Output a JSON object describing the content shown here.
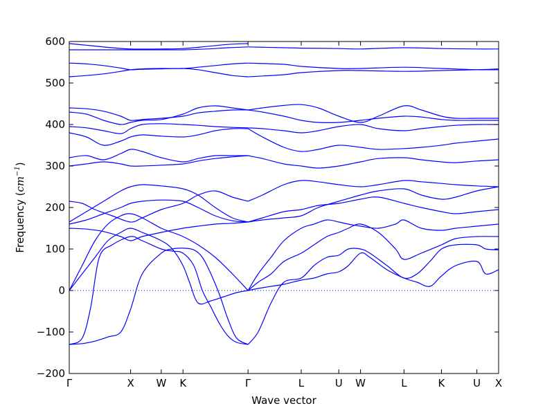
{
  "chart_data": {
    "type": "line",
    "title": "",
    "xlabel": "Wave vector",
    "ylabel": "Frequency (cm⁻¹)",
    "ylabel_parts": {
      "prefix": "Frequency (",
      "unit": "cm",
      "exponent": "−1",
      "suffix": ")"
    },
    "ylim": [
      -200,
      600
    ],
    "yticks": [
      -200,
      -100,
      0,
      100,
      200,
      300,
      400,
      500,
      600
    ],
    "xlim": [
      0,
      1
    ],
    "xticks": [
      {
        "label": "Γ",
        "x": 0.0
      },
      {
        "label": "X",
        "x": 0.1429
      },
      {
        "label": "W",
        "x": 0.2143
      },
      {
        "label": "K",
        "x": 0.2649
      },
      {
        "label": "Γ",
        "x": 0.4164
      },
      {
        "label": "L",
        "x": 0.5403
      },
      {
        "label": "U",
        "x": 0.6278
      },
      {
        "label": "W",
        "x": 0.6784
      },
      {
        "label": "L",
        "x": 0.7797
      },
      {
        "label": "K",
        "x": 0.8669
      },
      {
        "label": "U",
        "x": 0.9494
      },
      {
        "label": "X",
        "x": 1.0
      }
    ],
    "zero_line": true,
    "grid": false,
    "line_color": "#0000ff",
    "series": [
      {
        "x": [
          0,
          0.03,
          0.06,
          0.09,
          0.12,
          0.1429,
          0.17,
          0.2143,
          0.24,
          0.2649,
          0.29,
          0.31,
          0.33,
          0.35,
          0.37,
          0.39,
          0.4164
        ],
        "y": [
          -130,
          -128,
          -122,
          -112,
          -100,
          -45,
          40,
          90,
          100,
          102,
          98,
          80,
          40,
          -10,
          -70,
          -115,
          -130
        ]
      },
      {
        "x": [
          0,
          0.03,
          0.05,
          0.07,
          0.1,
          0.1429,
          0.17,
          0.2143,
          0.24,
          0.2649,
          0.29,
          0.31,
          0.33,
          0.35,
          0.37,
          0.39,
          0.4164
        ],
        "y": [
          -130,
          -115,
          -40,
          80,
          110,
          130,
          120,
          100,
          95,
          90,
          60,
          0,
          -40,
          -80,
          -110,
          -125,
          -130
        ]
      },
      {
        "x": [
          0,
          0.03,
          0.06,
          0.09,
          0.12,
          0.1429,
          0.17,
          0.2143,
          0.24,
          0.2649,
          0.28,
          0.3,
          0.33,
          0.36,
          0.39,
          0.4164
        ],
        "y": [
          0,
          40,
          80,
          120,
          140,
          150,
          140,
          120,
          100,
          60,
          20,
          -30,
          -25,
          -15,
          -5,
          0
        ]
      },
      {
        "x": [
          0,
          0.03,
          0.06,
          0.09,
          0.12,
          0.1429,
          0.17,
          0.2143,
          0.24,
          0.2649,
          0.3,
          0.34,
          0.38,
          0.4164
        ],
        "y": [
          0,
          60,
          120,
          160,
          180,
          185,
          175,
          150,
          140,
          130,
          110,
          80,
          40,
          0
        ]
      },
      {
        "x": [
          0,
          0.04,
          0.08,
          0.12,
          0.1429,
          0.17,
          0.2143,
          0.2649,
          0.3,
          0.34,
          0.38,
          0.4164
        ],
        "y": [
          150,
          148,
          142,
          130,
          120,
          130,
          140,
          150,
          155,
          160,
          162,
          165
        ]
      },
      {
        "x": [
          0,
          0.04,
          0.08,
          0.12,
          0.1429,
          0.17,
          0.2143,
          0.2649,
          0.3,
          0.34,
          0.38,
          0.4164
        ],
        "y": [
          160,
          170,
          185,
          200,
          210,
          215,
          218,
          215,
          200,
          180,
          168,
          165
        ]
      },
      {
        "x": [
          0,
          0.04,
          0.08,
          0.12,
          0.1429,
          0.17,
          0.2143,
          0.2649,
          0.3,
          0.34,
          0.38,
          0.4164
        ],
        "y": [
          165,
          190,
          215,
          240,
          250,
          255,
          252,
          245,
          230,
          200,
          175,
          165
        ]
      },
      {
        "x": [
          0,
          0.03,
          0.06,
          0.1,
          0.1429,
          0.17,
          0.2143,
          0.2649,
          0.3,
          0.34,
          0.38,
          0.4164
        ],
        "y": [
          215,
          210,
          195,
          180,
          165,
          175,
          195,
          210,
          230,
          240,
          225,
          215
        ]
      },
      {
        "x": [
          0,
          0.04,
          0.08,
          0.12,
          0.1429,
          0.17,
          0.2143,
          0.2649,
          0.3,
          0.34,
          0.38,
          0.4164
        ],
        "y": [
          300,
          305,
          310,
          305,
          300,
          300,
          302,
          305,
          312,
          318,
          322,
          325
        ]
      },
      {
        "x": [
          0,
          0.04,
          0.08,
          0.12,
          0.1429,
          0.17,
          0.2143,
          0.2649,
          0.3,
          0.34,
          0.38,
          0.4164
        ],
        "y": [
          320,
          325,
          315,
          330,
          340,
          335,
          320,
          310,
          318,
          325,
          325,
          325
        ]
      },
      {
        "x": [
          0,
          0.04,
          0.08,
          0.12,
          0.1429,
          0.17,
          0.2143,
          0.2649,
          0.3,
          0.34,
          0.38,
          0.4164
        ],
        "y": [
          380,
          370,
          350,
          360,
          370,
          375,
          372,
          370,
          375,
          385,
          390,
          390
        ]
      },
      {
        "x": [
          0,
          0.04,
          0.08,
          0.12,
          0.1429,
          0.17,
          0.2143,
          0.2649,
          0.3,
          0.34,
          0.38,
          0.4164
        ],
        "y": [
          395,
          392,
          385,
          378,
          390,
          400,
          402,
          400,
          398,
          395,
          393,
          392
        ]
      },
      {
        "x": [
          0,
          0.04,
          0.08,
          0.12,
          0.1429,
          0.17,
          0.2143,
          0.2649,
          0.3,
          0.34,
          0.38,
          0.4164
        ],
        "y": [
          430,
          425,
          410,
          400,
          405,
          410,
          412,
          425,
          440,
          445,
          440,
          435
        ]
      },
      {
        "x": [
          0,
          0.04,
          0.08,
          0.12,
          0.1429,
          0.17,
          0.2143,
          0.2649,
          0.3,
          0.34,
          0.38,
          0.4164
        ],
        "y": [
          440,
          438,
          432,
          420,
          410,
          412,
          415,
          420,
          428,
          432,
          435,
          435
        ]
      },
      {
        "x": [
          0,
          0.04,
          0.08,
          0.12,
          0.1429,
          0.17,
          0.2143,
          0.2649,
          0.3,
          0.34,
          0.38,
          0.4164
        ],
        "y": [
          515,
          518,
          522,
          528,
          532,
          534,
          535,
          535,
          538,
          542,
          546,
          548
        ]
      },
      {
        "x": [
          0,
          0.04,
          0.08,
          0.12,
          0.1429,
          0.17,
          0.2143,
          0.2649,
          0.3,
          0.34,
          0.38,
          0.4164
        ],
        "y": [
          548,
          546,
          542,
          536,
          532,
          533,
          534,
          535,
          532,
          525,
          518,
          515
        ]
      },
      {
        "x": [
          0,
          0.05,
          0.1,
          0.1429,
          0.2143,
          0.2649,
          0.32,
          0.37,
          0.4164
        ],
        "y": [
          580,
          580,
          580,
          580,
          580,
          580,
          582,
          585,
          587
        ]
      },
      {
        "x": [
          0,
          0.05,
          0.1,
          0.1429,
          0.2143,
          0.2649,
          0.32,
          0.37,
          0.4164
        ],
        "y": [
          595,
          590,
          585,
          582,
          582,
          583,
          588,
          593,
          595
        ]
      },
      {
        "x": [
          0.4164,
          0.44,
          0.47,
          0.5,
          0.5403,
          0.57,
          0.6,
          0.6278,
          0.65,
          0.6784,
          0.7,
          0.74,
          0.7797,
          0.81,
          0.84,
          0.8669,
          0.9,
          0.9494,
          0.97,
          1.0
        ],
        "y": [
          0,
          5,
          10,
          15,
          25,
          30,
          40,
          45,
          60,
          90,
          80,
          50,
          30,
          20,
          10,
          35,
          60,
          70,
          40,
          50
        ]
      },
      {
        "x": [
          0.4164,
          0.44,
          0.47,
          0.5,
          0.5403,
          0.57,
          0.6,
          0.6278,
          0.65,
          0.6784,
          0.7,
          0.74,
          0.7797,
          0.81,
          0.84,
          0.8669,
          0.9,
          0.9494,
          0.97,
          1.0
        ],
        "y": [
          -130,
          -100,
          -30,
          20,
          30,
          60,
          80,
          85,
          100,
          100,
          90,
          60,
          30,
          40,
          70,
          100,
          110,
          110,
          100,
          98
        ]
      },
      {
        "x": [
          0.4164,
          0.44,
          0.47,
          0.5,
          0.5403,
          0.57,
          0.6,
          0.6278,
          0.65,
          0.6784,
          0.72,
          0.76,
          0.7797,
          0.82,
          0.8669,
          0.9,
          0.9494,
          1.0
        ],
        "y": [
          0,
          20,
          40,
          70,
          90,
          110,
          130,
          140,
          150,
          160,
          140,
          100,
          75,
          90,
          110,
          125,
          130,
          130
        ]
      },
      {
        "x": [
          0.4164,
          0.44,
          0.47,
          0.5,
          0.5403,
          0.57,
          0.6,
          0.6278,
          0.65,
          0.6784,
          0.72,
          0.76,
          0.7797,
          0.82,
          0.8669,
          0.9,
          0.9494,
          1.0
        ],
        "y": [
          0,
          40,
          80,
          120,
          150,
          160,
          170,
          165,
          160,
          155,
          150,
          160,
          170,
          150,
          145,
          150,
          155,
          160
        ]
      },
      {
        "x": [
          0.4164,
          0.45,
          0.5,
          0.5403,
          0.58,
          0.6278,
          0.6784,
          0.72,
          0.7797,
          0.82,
          0.8669,
          0.9,
          0.9494,
          1.0
        ],
        "y": [
          165,
          175,
          190,
          195,
          205,
          210,
          220,
          225,
          210,
          200,
          190,
          185,
          190,
          195
        ]
      },
      {
        "x": [
          0.4164,
          0.45,
          0.5,
          0.5403,
          0.58,
          0.6278,
          0.6784,
          0.72,
          0.7797,
          0.82,
          0.8669,
          0.9,
          0.9494,
          1.0
        ],
        "y": [
          165,
          170,
          175,
          180,
          200,
          215,
          230,
          240,
          245,
          230,
          220,
          225,
          240,
          250
        ]
      },
      {
        "x": [
          0.4164,
          0.45,
          0.5,
          0.5403,
          0.58,
          0.6278,
          0.6784,
          0.72,
          0.7797,
          0.82,
          0.8669,
          0.9,
          0.9494,
          1.0
        ],
        "y": [
          215,
          230,
          255,
          265,
          262,
          255,
          250,
          255,
          265,
          262,
          258,
          255,
          252,
          250
        ]
      },
      {
        "x": [
          0.4164,
          0.45,
          0.5,
          0.5403,
          0.58,
          0.6278,
          0.6784,
          0.72,
          0.7797,
          0.82,
          0.8669,
          0.9,
          0.9494,
          1.0
        ],
        "y": [
          325,
          318,
          305,
          300,
          295,
          300,
          310,
          318,
          320,
          315,
          310,
          308,
          312,
          315
        ]
      },
      {
        "x": [
          0.4164,
          0.45,
          0.5,
          0.5403,
          0.58,
          0.6278,
          0.6784,
          0.72,
          0.7797,
          0.82,
          0.8669,
          0.9,
          0.9494,
          1.0
        ],
        "y": [
          390,
          370,
          345,
          335,
          340,
          350,
          345,
          340,
          342,
          345,
          350,
          355,
          360,
          365
        ]
      },
      {
        "x": [
          0.4164,
          0.45,
          0.5,
          0.5403,
          0.58,
          0.6278,
          0.6784,
          0.72,
          0.7797,
          0.82,
          0.8669,
          0.9,
          0.9494,
          1.0
        ],
        "y": [
          392,
          390,
          385,
          380,
          385,
          395,
          400,
          390,
          385,
          390,
          395,
          398,
          400,
          400
        ]
      },
      {
        "x": [
          0.4164,
          0.45,
          0.5,
          0.5403,
          0.58,
          0.6278,
          0.6784,
          0.72,
          0.7797,
          0.82,
          0.8669,
          0.9,
          0.9494,
          1.0
        ],
        "y": [
          435,
          440,
          446,
          448,
          440,
          420,
          405,
          420,
          445,
          435,
          420,
          415,
          415,
          415
        ]
      },
      {
        "x": [
          0.4164,
          0.45,
          0.5,
          0.5403,
          0.58,
          0.6278,
          0.6784,
          0.72,
          0.7797,
          0.82,
          0.8669,
          0.9,
          0.9494,
          1.0
        ],
        "y": [
          435,
          430,
          420,
          410,
          405,
          405,
          410,
          415,
          420,
          418,
          412,
          410,
          410,
          410
        ]
      },
      {
        "x": [
          0.4164,
          0.5,
          0.5403,
          0.6278,
          0.6784,
          0.7797,
          0.8669,
          0.9494,
          1.0
        ],
        "y": [
          548,
          545,
          540,
          535,
          535,
          538,
          535,
          532,
          532
        ]
      },
      {
        "x": [
          0.4164,
          0.5,
          0.5403,
          0.6278,
          0.6784,
          0.7797,
          0.8669,
          0.9494,
          1.0
        ],
        "y": [
          515,
          520,
          525,
          530,
          530,
          528,
          530,
          532,
          534
        ]
      },
      {
        "x": [
          0.4164,
          0.5,
          0.5403,
          0.6278,
          0.6784,
          0.7797,
          0.8669,
          0.9494,
          1.0
        ],
        "y": [
          587,
          585,
          584,
          583,
          582,
          585,
          583,
          582,
          582
        ]
      }
    ]
  }
}
